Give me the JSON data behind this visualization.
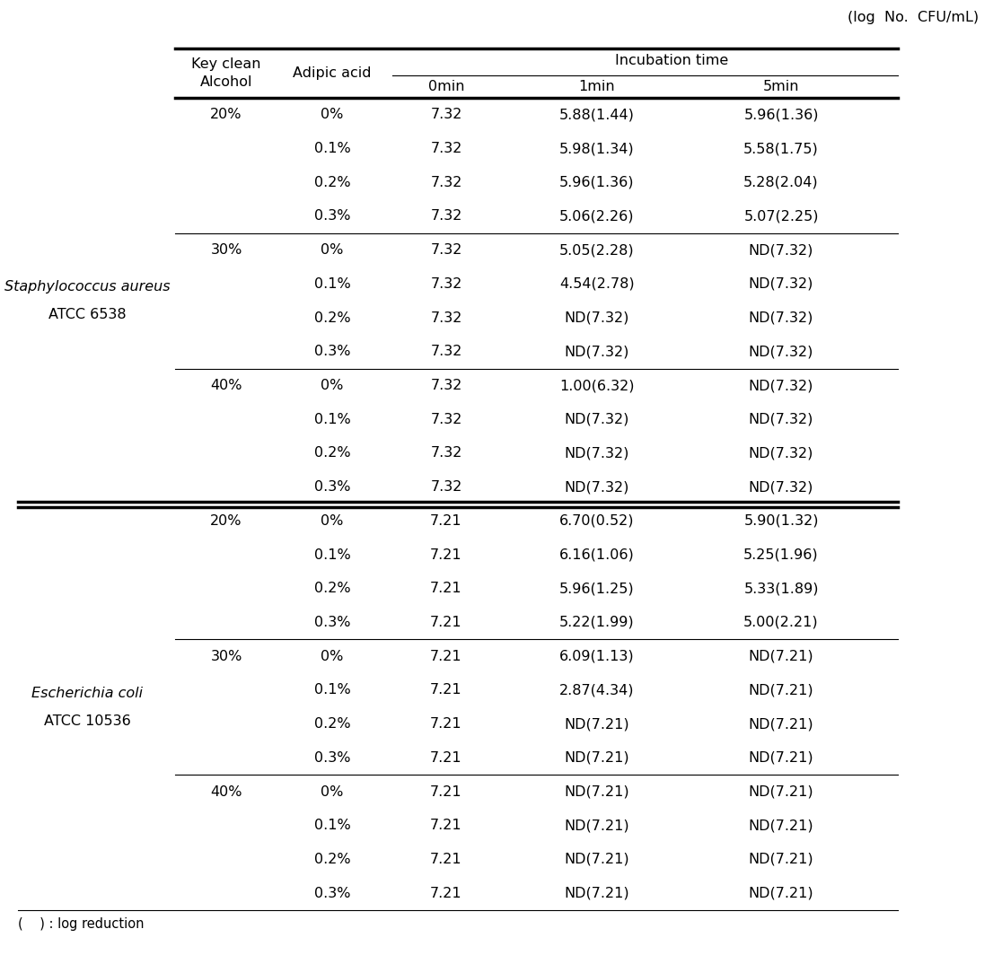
{
  "unit_label": "(log  No.  CFU/mL)",
  "incubation_label": "Incubation time",
  "footnote": "(    ) : log reduction",
  "rows": [
    {
      "alcohol": "20%",
      "adipic": "0%",
      "t0": "7.32",
      "t1": "5.88(1.44)",
      "t5": "5.96(1.36)"
    },
    {
      "alcohol": "",
      "adipic": "0.1%",
      "t0": "7.32",
      "t1": "5.98(1.34)",
      "t5": "5.58(1.75)"
    },
    {
      "alcohol": "",
      "adipic": "0.2%",
      "t0": "7.32",
      "t1": "5.96(1.36)",
      "t5": "5.28(2.04)"
    },
    {
      "alcohol": "",
      "adipic": "0.3%",
      "t0": "7.32",
      "t1": "5.06(2.26)",
      "t5": "5.07(2.25)"
    },
    {
      "alcohol": "30%",
      "adipic": "0%",
      "t0": "7.32",
      "t1": "5.05(2.28)",
      "t5": "ND(7.32)"
    },
    {
      "alcohol": "",
      "adipic": "0.1%",
      "t0": "7.32",
      "t1": "4.54(2.78)",
      "t5": "ND(7.32)"
    },
    {
      "alcohol": "",
      "adipic": "0.2%",
      "t0": "7.32",
      "t1": "ND(7.32)",
      "t5": "ND(7.32)"
    },
    {
      "alcohol": "",
      "adipic": "0.3%",
      "t0": "7.32",
      "t1": "ND(7.32)",
      "t5": "ND(7.32)"
    },
    {
      "alcohol": "40%",
      "adipic": "0%",
      "t0": "7.32",
      "t1": "1.00(6.32)",
      "t5": "ND(7.32)"
    },
    {
      "alcohol": "",
      "adipic": "0.1%",
      "t0": "7.32",
      "t1": "ND(7.32)",
      "t5": "ND(7.32)"
    },
    {
      "alcohol": "",
      "adipic": "0.2%",
      "t0": "7.32",
      "t1": "ND(7.32)",
      "t5": "ND(7.32)"
    },
    {
      "alcohol": "",
      "adipic": "0.3%",
      "t0": "7.32",
      "t1": "ND(7.32)",
      "t5": "ND(7.32)"
    },
    {
      "alcohol": "20%",
      "adipic": "0%",
      "t0": "7.21",
      "t1": "6.70(0.52)",
      "t5": "5.90(1.32)"
    },
    {
      "alcohol": "",
      "adipic": "0.1%",
      "t0": "7.21",
      "t1": "6.16(1.06)",
      "t5": "5.25(1.96)"
    },
    {
      "alcohol": "",
      "adipic": "0.2%",
      "t0": "7.21",
      "t1": "5.96(1.25)",
      "t5": "5.33(1.89)"
    },
    {
      "alcohol": "",
      "adipic": "0.3%",
      "t0": "7.21",
      "t1": "5.22(1.99)",
      "t5": "5.00(2.21)"
    },
    {
      "alcohol": "30%",
      "adipic": "0%",
      "t0": "7.21",
      "t1": "6.09(1.13)",
      "t5": "ND(7.21)"
    },
    {
      "alcohol": "",
      "adipic": "0.1%",
      "t0": "7.21",
      "t1": "2.87(4.34)",
      "t5": "ND(7.21)"
    },
    {
      "alcohol": "",
      "adipic": "0.2%",
      "t0": "7.21",
      "t1": "ND(7.21)",
      "t5": "ND(7.21)"
    },
    {
      "alcohol": "",
      "adipic": "0.3%",
      "t0": "7.21",
      "t1": "ND(7.21)",
      "t5": "ND(7.21)"
    },
    {
      "alcohol": "40%",
      "adipic": "0%",
      "t0": "7.21",
      "t1": "ND(7.21)",
      "t5": "ND(7.21)"
    },
    {
      "alcohol": "",
      "adipic": "0.1%",
      "t0": "7.21",
      "t1": "ND(7.21)",
      "t5": "ND(7.21)"
    },
    {
      "alcohol": "",
      "adipic": "0.2%",
      "t0": "7.21",
      "t1": "ND(7.21)",
      "t5": "ND(7.21)"
    },
    {
      "alcohol": "",
      "adipic": "0.3%",
      "t0": "7.21",
      "t1": "ND(7.21)",
      "t5": "ND(7.21)"
    }
  ],
  "thin_line_rows": [
    4,
    8,
    16,
    20
  ],
  "double_line_row": 12,
  "font_size": 11.5,
  "font_color": "#000000",
  "bg_color": "#ffffff",
  "staph_name1": "Staphylococcus aureus",
  "staph_name2": "ATCC 6538",
  "ecoli_name1": "Escherichia coli",
  "ecoli_name2": "ATCC 10536",
  "header_alcohol": "Key clean\nAlcohol",
  "header_adipic": "Adipic acid",
  "header_0min": "0min",
  "header_1min": "1min",
  "header_5min": "5min"
}
